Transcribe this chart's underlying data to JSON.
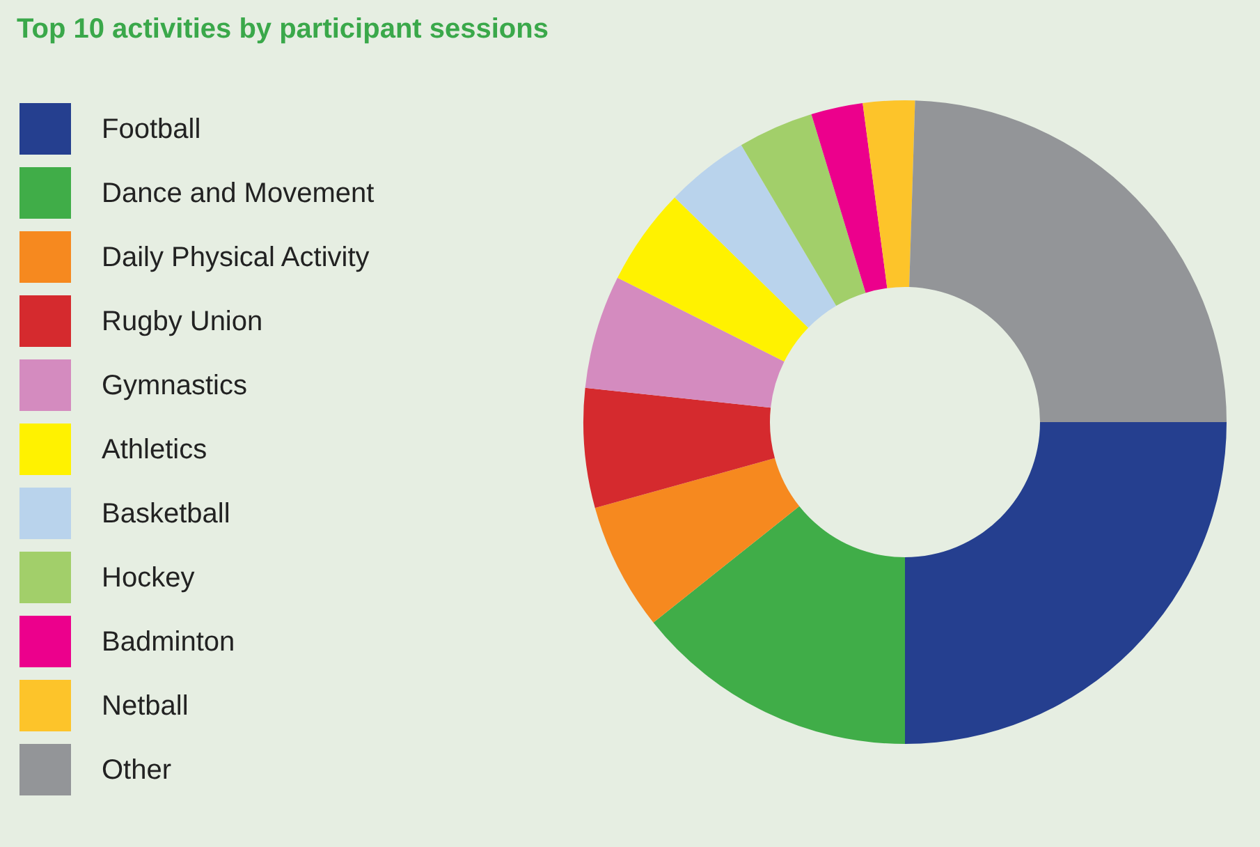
{
  "chart_data": {
    "type": "donut",
    "title": "Top 10 activities by participant sessions",
    "categories": [
      "Football",
      "Dance and Movement",
      "Daily Physical Activity",
      "Rugby Union",
      "Gymnastics",
      "Athletics",
      "Basketball",
      "Hockey",
      "Badminton",
      "Netball",
      "Other"
    ],
    "values": [
      25,
      14.3,
      6.4,
      6.0,
      5.7,
      4.9,
      4.2,
      3.8,
      2.6,
      2.6,
      24.5
    ],
    "colors": [
      "#253f8f",
      "#40ad48",
      "#f6891f",
      "#d52a2e",
      "#d48bbf",
      "#fff200",
      "#b9d3ec",
      "#a2cf6a",
      "#ec008c",
      "#fdc42a",
      "#939598"
    ],
    "legend": "left"
  }
}
